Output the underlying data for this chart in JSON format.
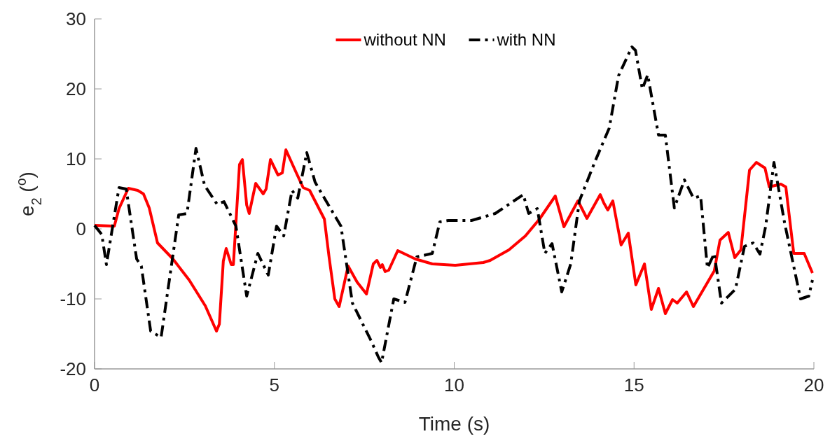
{
  "chart_data": {
    "type": "line",
    "xlabel": "Time (s)",
    "ylabel": "e$_{2}$ ($^{o}$)",
    "xlim": [
      0,
      20
    ],
    "ylim": [
      -20,
      30
    ],
    "xticks": [
      0,
      5,
      10,
      15,
      20
    ],
    "yticks": [
      -20,
      -10,
      0,
      10,
      20,
      30
    ],
    "grid": false,
    "legend": "top",
    "series": [
      {
        "name": "without NN",
        "color": "#ff0000",
        "line_style": "solid",
        "x": [
          0,
          0.55,
          0.68,
          0.84,
          0.94,
          1.2,
          1.36,
          1.52,
          1.75,
          2.18,
          2.63,
          3.08,
          3.39,
          3.47,
          3.58,
          3.66,
          3.8,
          3.86,
          4.03,
          4.11,
          4.23,
          4.3,
          4.48,
          4.69,
          4.77,
          4.89,
          5.1,
          5.22,
          5.32,
          5.61,
          5.8,
          5.98,
          6.39,
          6.52,
          6.68,
          6.8,
          7.05,
          7.3,
          7.56,
          7.75,
          7.85,
          7.95,
          8.0,
          8.08,
          8.18,
          8.43,
          8.92,
          9.39,
          10.03,
          10.81,
          11.0,
          11.52,
          11.98,
          12.37,
          12.81,
          13.05,
          13.44,
          13.69,
          14.06,
          14.16,
          14.27,
          14.41,
          14.64,
          14.84,
          15.05,
          15.29,
          15.48,
          15.68,
          15.87,
          16.07,
          16.2,
          16.46,
          16.65,
          17.23,
          17.39,
          17.62,
          17.8,
          17.97,
          18.21,
          18.4,
          18.64,
          18.76,
          19.08,
          19.22,
          19.44,
          19.73,
          19.96
        ],
        "values": [
          0.5,
          0.4,
          2.9,
          4.7,
          5.8,
          5.5,
          5.0,
          3.0,
          -2.0,
          -4.3,
          -7.3,
          -11.0,
          -14.6,
          -13.6,
          -4.6,
          -2.8,
          -5.1,
          -5.1,
          9.2,
          9.9,
          3.4,
          2.2,
          6.5,
          5.0,
          5.7,
          9.9,
          7.7,
          8.0,
          11.3,
          8.0,
          5.9,
          5.5,
          1.4,
          -4.0,
          -10.0,
          -11.1,
          -5.3,
          -7.6,
          -9.3,
          -5.0,
          -4.5,
          -5.5,
          -5.1,
          -6.1,
          -5.9,
          -3.1,
          -4.3,
          -5.0,
          -5.2,
          -4.8,
          -4.5,
          -3.0,
          -1.0,
          1.4,
          4.7,
          0.3,
          4.0,
          1.5,
          4.9,
          3.7,
          2.7,
          4.0,
          -2.3,
          -0.6,
          -8.0,
          -5.0,
          -11.5,
          -8.5,
          -12.1,
          -10.1,
          -10.6,
          -9.0,
          -11.1,
          -6.0,
          -1.6,
          -0.5,
          -4.1,
          -3.0,
          8.4,
          9.5,
          8.7,
          6.0,
          6.4,
          6.0,
          -3.5,
          -3.5,
          -6.3
        ]
      },
      {
        "name": "with NN",
        "color": "#000000",
        "line_style": "dashdot",
        "x": [
          0,
          0.2,
          0.33,
          0.68,
          0.88,
          1.17,
          1.3,
          1.56,
          1.85,
          2.34,
          2.57,
          2.82,
          3.06,
          3.41,
          3.6,
          3.93,
          4.23,
          4.54,
          4.83,
          5.06,
          5.26,
          5.49,
          5.65,
          5.9,
          6.13,
          6.39,
          6.85,
          7.17,
          7.69,
          7.89,
          7.98,
          8.32,
          8.63,
          8.96,
          9.39,
          9.6,
          9.83,
          10.48,
          11.14,
          11.92,
          12.07,
          12.31,
          12.52,
          12.72,
          12.99,
          13.24,
          13.48,
          13.92,
          14.31,
          14.57,
          14.94,
          15.04,
          15.23,
          15.38,
          15.68,
          15.87,
          16.12,
          16.4,
          16.65,
          16.85,
          17.04,
          17.23,
          17.43,
          17.82,
          18.07,
          18.31,
          18.5,
          18.66,
          18.89,
          19.18,
          19.63,
          19.86,
          19.96
        ],
        "values": [
          0.5,
          -0.8,
          -5.1,
          5.9,
          5.7,
          -4.3,
          -5.3,
          -14.6,
          -15.5,
          2.0,
          2.2,
          11.5,
          6.2,
          3.5,
          3.9,
          0.4,
          -9.6,
          -3.5,
          -6.6,
          0.4,
          -1.0,
          5.5,
          4.4,
          10.9,
          6.7,
          4.4,
          0.4,
          -10.6,
          -16.0,
          -18.3,
          -19.1,
          -10.0,
          -10.5,
          -4.0,
          -3.5,
          1.0,
          1.2,
          1.2,
          2.2,
          4.9,
          2.2,
          2.9,
          -3.5,
          -2.1,
          -9.0,
          -5.0,
          4.0,
          9.7,
          14.4,
          21.9,
          26.0,
          25.5,
          20.0,
          22.0,
          13.4,
          13.4,
          3.0,
          7.0,
          4.4,
          4.7,
          -5.6,
          -3.5,
          -10.6,
          -8.6,
          -2.5,
          -2.0,
          -3.6,
          0.4,
          9.5,
          1.0,
          -10.0,
          -9.6,
          -7.3
        ]
      }
    ]
  }
}
